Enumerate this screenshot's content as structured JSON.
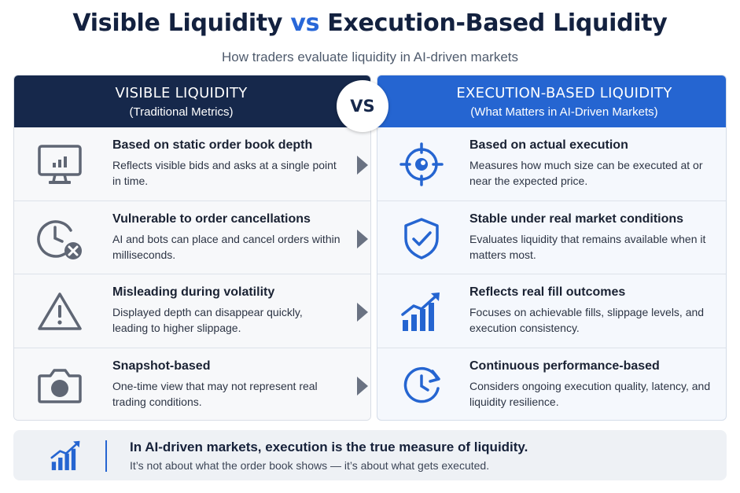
{
  "title": {
    "part1": "Visible Liquidity",
    "vs": "vs",
    "part2": "Execution-Based Liquidity"
  },
  "subtitle": "How traders evaluate liquidity in AI-driven markets",
  "vs_badge": "VS",
  "left_panel": {
    "heading": "VISIBLE LIQUIDITY",
    "subheading": "(Traditional Metrics)",
    "rows": [
      {
        "icon": "monitor-bar-chart-icon",
        "title": "Based on static order book depth",
        "body": "Reflects visible bids and asks at a single point in time."
      },
      {
        "icon": "clock-cancel-icon",
        "title": "Vulnerable to order cancellations",
        "body": "AI and bots can place and cancel orders within milliseconds."
      },
      {
        "icon": "warning-triangle-icon",
        "title": "Misleading during volatility",
        "body": "Displayed depth can disappear quickly, leading to higher slippage."
      },
      {
        "icon": "camera-icon",
        "title": "Snapshot-based",
        "body": "One-time view that may not represent real trading conditions."
      }
    ]
  },
  "right_panel": {
    "heading": "EXECUTION-BASED LIQUIDITY",
    "subheading": "(What Matters in AI-Driven Markets)",
    "rows": [
      {
        "icon": "target-crosshair-icon",
        "title": "Based on actual execution",
        "body": "Measures how much size can be executed at or near the expected price."
      },
      {
        "icon": "shield-check-icon",
        "title": "Stable under real market conditions",
        "body": "Evaluates liquidity that remains available when it matters most."
      },
      {
        "icon": "growth-chart-icon",
        "title": "Reflects real fill outcomes",
        "body": "Focuses on achievable fills, slippage levels, and execution consistency."
      },
      {
        "icon": "clock-refresh-icon",
        "title": "Continuous performance-based",
        "body": "Considers ongoing execution quality, latency, and liquidity resilience."
      }
    ]
  },
  "footer": {
    "icon": "growth-chart-icon",
    "main": "In AI-driven markets, execution is the true measure of liquidity.",
    "sub": "It’s not about what the order book shows — it’s about what gets executed."
  },
  "colors": {
    "navy": "#16284b",
    "blue": "#2565d1",
    "gray_icon": "#5f6674"
  }
}
